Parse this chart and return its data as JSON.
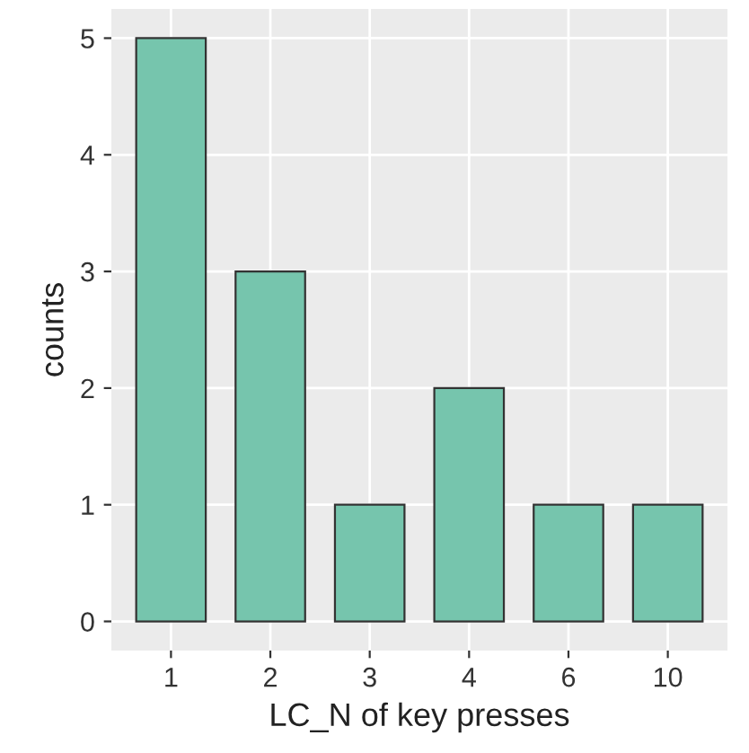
{
  "chart_data": {
    "type": "bar",
    "xlabel": "LC_N of key presses",
    "ylabel": "counts",
    "categories": [
      "1",
      "2",
      "3",
      "4",
      "6",
      "10"
    ],
    "values": [
      5,
      3,
      1,
      2,
      1,
      1
    ],
    "color": "#76c5ad",
    "ylim": [
      -0.25,
      5.25
    ],
    "yticks": [
      0,
      1,
      2,
      3,
      4,
      5
    ],
    "grid": true
  }
}
